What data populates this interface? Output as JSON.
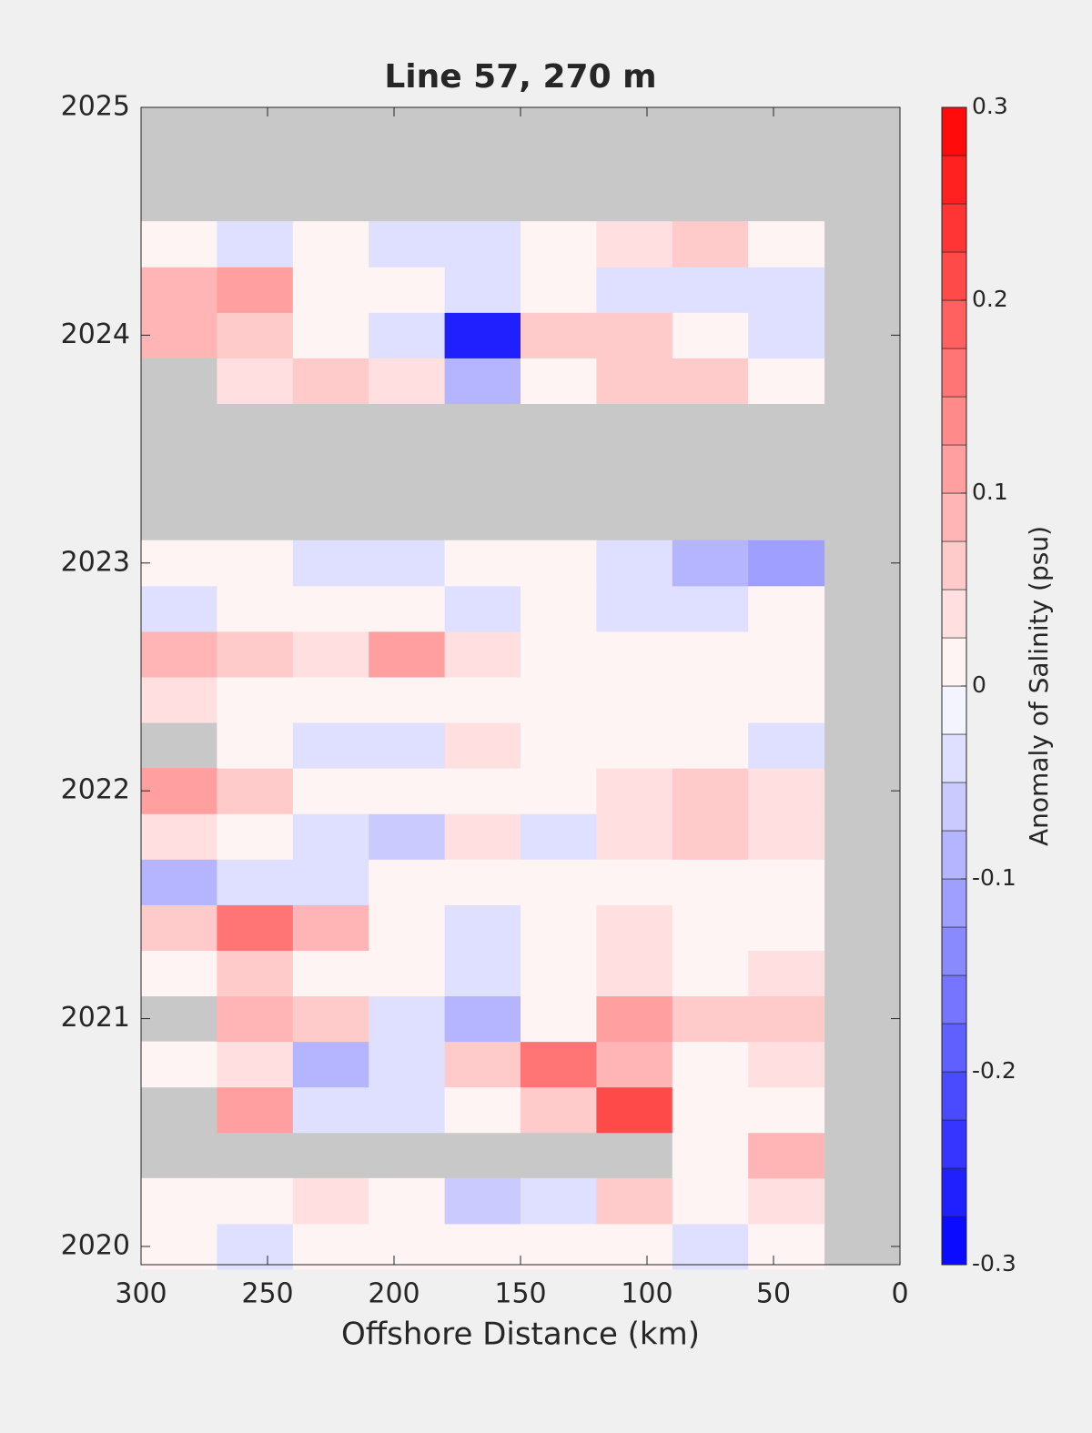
{
  "chart_data": {
    "type": "contour",
    "title": "Line 57, 270 m",
    "x_label": "Offshore Distance (km)",
    "colorbar_label": "Anomaly of Salinity (psu)",
    "xlim": [
      300,
      0
    ],
    "xticks": [
      300,
      250,
      200,
      150,
      100,
      50,
      0
    ],
    "ylim": [
      2019.92,
      2025
    ],
    "yticks": [
      2020,
      2021,
      2022,
      2023,
      2024,
      2025
    ],
    "clim": [
      -0.3,
      0.3
    ],
    "cticks": [
      -0.3,
      -0.2,
      -0.1,
      0,
      0.1,
      0.2,
      0.3
    ],
    "levels": 24,
    "colormap": [
      "#0000ff",
      "#ffffff",
      "#ff0000"
    ],
    "missing_color": "#c8c8c8",
    "x": [
      285,
      255,
      225,
      195,
      165,
      135,
      105,
      75,
      45
    ],
    "y": [
      2020.0,
      2020.2,
      2020.4,
      2020.6,
      2020.8,
      2021.0,
      2021.2,
      2021.4,
      2021.6,
      2021.8,
      2022.0,
      2022.2,
      2022.4,
      2022.6,
      2022.8,
      2023.0,
      2023.2,
      2023.4,
      2023.6,
      2023.8,
      2024.0,
      2024.2,
      2024.4
    ],
    "z": [
      [
        0,
        -0.03,
        0,
        0,
        0,
        0,
        0,
        -0.03,
        0
      ],
      [
        0,
        0,
        0.03,
        0,
        -0.06,
        -0.03,
        0.05,
        0,
        0.03
      ],
      [
        null,
        null,
        null,
        null,
        null,
        null,
        null,
        0,
        0.08
      ],
      [
        null,
        0.1,
        -0.05,
        -0.05,
        0,
        0.05,
        0.2,
        0,
        0
      ],
      [
        0,
        0.03,
        -0.1,
        -0.05,
        0.05,
        0.15,
        0.08,
        0,
        0.03
      ],
      [
        null,
        0.08,
        0.05,
        -0.05,
        -0.08,
        0,
        0.1,
        0.05,
        0.05
      ],
      [
        0,
        0.05,
        0,
        0,
        -0.05,
        0,
        0.03,
        0,
        0.03
      ],
      [
        0.05,
        0.15,
        0.08,
        0,
        -0.05,
        0,
        0.03,
        0,
        0
      ],
      [
        -0.08,
        -0.05,
        -0.03,
        0,
        0,
        0,
        0,
        0,
        0
      ],
      [
        0.03,
        0,
        -0.03,
        -0.06,
        0.03,
        -0.03,
        0.03,
        0.05,
        0.03
      ],
      [
        0.1,
        0.05,
        0,
        0,
        0,
        0,
        0.03,
        0.05,
        0.03
      ],
      [
        null,
        0,
        -0.03,
        -0.03,
        0.03,
        0,
        0,
        0,
        -0.03
      ],
      [
        0.03,
        0,
        0,
        0,
        0,
        0,
        0,
        0,
        0
      ],
      [
        0.08,
        0.05,
        0.03,
        0.1,
        0.03,
        0,
        0,
        0,
        0
      ],
      [
        -0.05,
        0,
        0,
        0,
        -0.03,
        0,
        -0.05,
        -0.03,
        0
      ],
      [
        0,
        0,
        -0.03,
        -0.03,
        0,
        0,
        -0.05,
        -0.08,
        -0.12
      ],
      [
        null,
        null,
        null,
        null,
        null,
        null,
        null,
        null,
        null
      ],
      [
        null,
        null,
        null,
        null,
        null,
        null,
        null,
        null,
        null
      ],
      [
        null,
        null,
        null,
        null,
        null,
        null,
        null,
        null,
        null
      ],
      [
        null,
        0.03,
        0.05,
        0.03,
        -0.1,
        0,
        0.05,
        0.05,
        0
      ],
      [
        0.08,
        0.05,
        0,
        -0.05,
        -0.25,
        0.05,
        0.05,
        0,
        -0.05
      ],
      [
        0.08,
        0.1,
        0,
        0,
        -0.05,
        0,
        -0.03,
        -0.05,
        -0.05
      ],
      [
        0,
        -0.05,
        0,
        -0.03,
        -0.03,
        0,
        0.03,
        0.05,
        0
      ]
    ]
  }
}
